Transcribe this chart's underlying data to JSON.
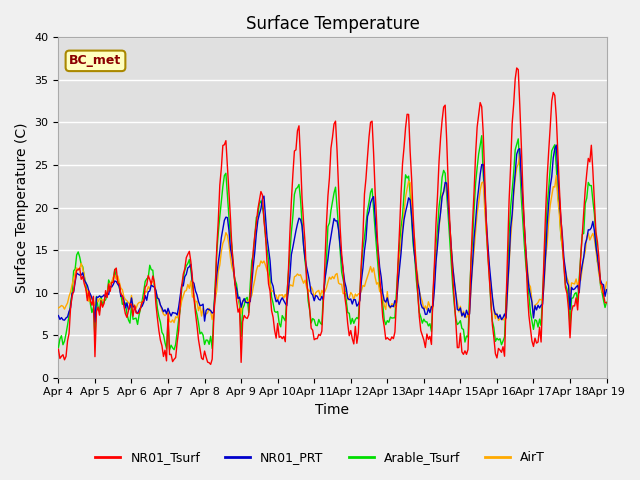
{
  "title": "Surface Temperature",
  "ylabel": "Surface Temperature (C)",
  "xlabel": "Time",
  "annotation": "BC_met",
  "ylim": [
    0,
    40
  ],
  "xlim": [
    0,
    360
  ],
  "x_tick_labels": [
    "Apr 4",
    "Apr 5",
    "Apr 6",
    "Apr 7",
    "Apr 8",
    "Apr 9",
    "Apr 10",
    "Apr 11",
    "Apr 12",
    "Apr 13",
    "Apr 14",
    "Apr 15",
    "Apr 16",
    "Apr 17",
    "Apr 18",
    "Apr 19"
  ],
  "x_tick_positions": [
    0,
    24,
    48,
    72,
    96,
    120,
    144,
    168,
    192,
    216,
    240,
    264,
    288,
    312,
    336,
    360
  ],
  "series_colors": {
    "NR01_Tsurf": "#ff0000",
    "NR01_PRT": "#0000cc",
    "Arable_Tsurf": "#00dd00",
    "AirT": "#ffaa00"
  },
  "background_color": "#e0e0e0",
  "fig_background": "#f0f0f0",
  "title_fontsize": 12,
  "axis_label_fontsize": 10,
  "tick_fontsize": 8,
  "legend_fontsize": 9,
  "linewidth": 1.0,
  "yticks": [
    0,
    5,
    10,
    15,
    20,
    25,
    30,
    35,
    40
  ]
}
